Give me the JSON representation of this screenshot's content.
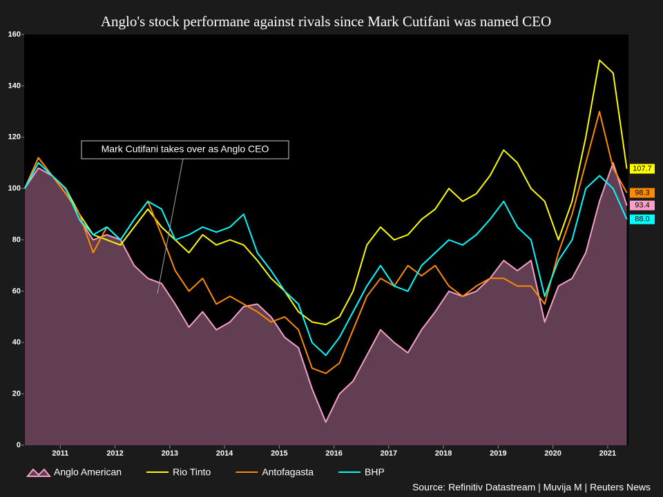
{
  "chart_data": {
    "type": "line",
    "title": "Anglo's stock performane against rivals since Mark Cutifani was named CEO",
    "annotation": "Mark Cutifani takes over as Anglo CEO",
    "source": "Source: Refinitiv Datastream | Muvija M | Reuters News",
    "x": [
      2010.35,
      2010.6,
      2010.85,
      2011.1,
      2011.35,
      2011.6,
      2011.85,
      2012.1,
      2012.35,
      2012.6,
      2012.85,
      2013.1,
      2013.35,
      2013.6,
      2013.85,
      2014.1,
      2014.35,
      2014.6,
      2014.85,
      2015.1,
      2015.35,
      2015.6,
      2015.85,
      2016.1,
      2016.35,
      2016.6,
      2016.85,
      2017.1,
      2017.35,
      2017.6,
      2017.85,
      2018.1,
      2018.35,
      2018.6,
      2018.85,
      2019.1,
      2019.35,
      2019.6,
      2019.85,
      2020.1,
      2020.35,
      2020.6,
      2020.85,
      2021.1,
      2021.35
    ],
    "xlim": [
      2010.34,
      2021.38
    ],
    "xticks": [
      2011,
      2012,
      2013,
      2014,
      2015,
      2016,
      2017,
      2018,
      2019,
      2020,
      2021
    ],
    "ylim": [
      0,
      160
    ],
    "yticks": [
      0,
      20,
      40,
      60,
      80,
      100,
      120,
      140,
      160
    ],
    "series": [
      {
        "name": "Anglo American",
        "color": "#f7a1c9",
        "area_color": "#623e52",
        "last_value_label": "93.4",
        "values": [
          100,
          108,
          105,
          100,
          88,
          80,
          82,
          80,
          70,
          65,
          63,
          55,
          46,
          52,
          45,
          48,
          54,
          55,
          50,
          42,
          38,
          22,
          9,
          20,
          25,
          35,
          45,
          40,
          36,
          45,
          52,
          60,
          58,
          60,
          65,
          72,
          68,
          72,
          48,
          62,
          65,
          75,
          95,
          110,
          93.4
        ]
      },
      {
        "name": "Rio Tinto",
        "color": "#ffff00",
        "last_value_label": "107.7",
        "values": [
          100,
          112,
          105,
          100,
          90,
          82,
          80,
          78,
          85,
          92,
          85,
          80,
          75,
          82,
          78,
          80,
          78,
          72,
          65,
          60,
          52,
          48,
          47,
          50,
          60,
          78,
          85,
          80,
          82,
          88,
          92,
          100,
          95,
          98,
          105,
          115,
          110,
          100,
          95,
          80,
          95,
          120,
          150,
          145,
          107.7
        ]
      },
      {
        "name": "Antofagasta",
        "color": "#ff8c00",
        "last_value_label": "98.3",
        "values": [
          100,
          112,
          105,
          98,
          90,
          75,
          85,
          80,
          88,
          95,
          82,
          68,
          60,
          65,
          55,
          58,
          55,
          52,
          48,
          50,
          45,
          30,
          28,
          32,
          45,
          58,
          65,
          62,
          70,
          66,
          70,
          62,
          58,
          62,
          65,
          65,
          62,
          62,
          55,
          75,
          90,
          110,
          130,
          108,
          98.3
        ]
      },
      {
        "name": "BHP",
        "color": "#00ffff",
        "last_value_label": "88.0",
        "values": [
          100,
          110,
          105,
          100,
          88,
          82,
          85,
          80,
          88,
          95,
          92,
          80,
          82,
          85,
          83,
          85,
          90,
          75,
          68,
          60,
          55,
          40,
          35,
          42,
          52,
          62,
          70,
          62,
          60,
          70,
          75,
          80,
          78,
          82,
          88,
          95,
          85,
          80,
          58,
          72,
          80,
          100,
          105,
          100,
          88
        ]
      }
    ]
  }
}
